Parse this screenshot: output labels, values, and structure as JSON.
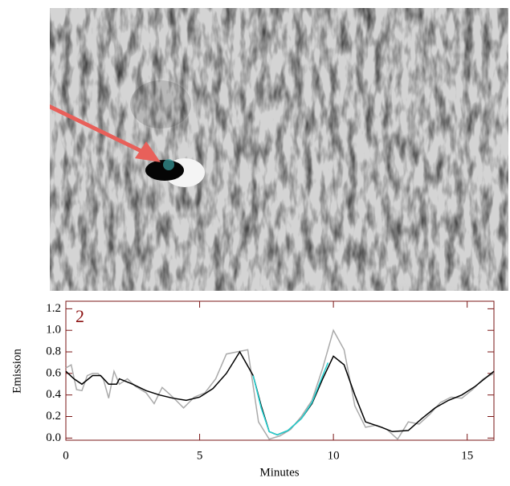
{
  "chart_data": {
    "type": "line",
    "annotation": "2",
    "x_label": "Minutes",
    "y_label": "Emission",
    "xlim": [
      0,
      16
    ],
    "xticks": [
      0,
      5,
      10,
      15
    ],
    "ylim": [
      -0.02,
      1.27
    ],
    "yticks": [
      {
        "value": 0,
        "label": "0.0"
      },
      {
        "value": 0.2,
        "label": "0.2"
      },
      {
        "value": 0.4,
        "label": "0.4"
      },
      {
        "value": 0.6,
        "label": "0.6"
      },
      {
        "value": 0.8,
        "label": "0.8"
      },
      {
        "value": 1.0,
        "label": "1.0"
      },
      {
        "value": 1.2,
        "label": "1.2"
      }
    ],
    "series": [
      {
        "color": "#aaaaaa",
        "x": [
          0,
          0.2,
          0.4,
          0.6,
          0.8,
          1.0,
          1.2,
          1.4,
          1.6,
          1.8,
          2.0,
          2.3,
          2.6,
          3.0,
          3.3,
          3.6,
          4.0,
          4.4,
          4.8,
          5.2,
          5.6,
          6.0,
          6.4,
          6.8,
          7.2,
          7.6,
          8.0,
          8.4,
          8.8,
          9.2,
          9.6,
          10.0,
          10.4,
          10.8,
          11.2,
          11.6,
          12.0,
          12.4,
          12.8,
          13.2,
          13.6,
          14.0,
          14.4,
          14.8,
          15.2,
          15.6,
          16.0
        ],
        "values": [
          0.65,
          0.68,
          0.45,
          0.44,
          0.58,
          0.6,
          0.6,
          0.55,
          0.37,
          0.62,
          0.5,
          0.55,
          0.48,
          0.42,
          0.32,
          0.47,
          0.38,
          0.28,
          0.38,
          0.42,
          0.55,
          0.78,
          0.8,
          0.82,
          0.15,
          -0.01,
          0.02,
          0.08,
          0.2,
          0.35,
          0.65,
          1.0,
          0.82,
          0.3,
          0.1,
          0.12,
          0.08,
          -0.01,
          0.15,
          0.13,
          0.22,
          0.33,
          0.38,
          0.37,
          0.45,
          0.55,
          0.6
        ]
      },
      {
        "color": "#000000",
        "x": [
          0,
          0.3,
          0.6,
          1.0,
          1.3,
          1.6,
          1.9,
          2.0,
          2.5,
          3.0,
          3.5,
          4.0,
          4.5,
          5.0,
          5.5,
          6.0,
          6.5,
          7.0,
          7.3,
          7.6,
          7.9,
          8.3,
          8.8,
          9.2,
          9.6,
          10.0,
          10.4,
          10.8,
          11.2,
          11.8,
          12.2,
          12.8,
          13.3,
          13.8,
          14.3,
          14.8,
          15.3,
          16.0
        ],
        "values": [
          0.62,
          0.55,
          0.5,
          0.58,
          0.58,
          0.5,
          0.5,
          0.55,
          0.5,
          0.44,
          0.4,
          0.37,
          0.35,
          0.38,
          0.46,
          0.6,
          0.8,
          0.58,
          0.3,
          0.06,
          0.03,
          0.07,
          0.18,
          0.32,
          0.55,
          0.76,
          0.68,
          0.4,
          0.15,
          0.1,
          0.06,
          0.07,
          0.18,
          0.28,
          0.35,
          0.4,
          0.48,
          0.62
        ]
      },
      {
        "color": "#22d3d3",
        "x": [
          7.0,
          7.3,
          7.6,
          7.9,
          8.3,
          8.8,
          9.2,
          9.6,
          9.8
        ],
        "values": [
          0.58,
          0.28,
          0.06,
          0.03,
          0.07,
          0.18,
          0.33,
          0.58,
          0.7
        ]
      }
    ]
  }
}
